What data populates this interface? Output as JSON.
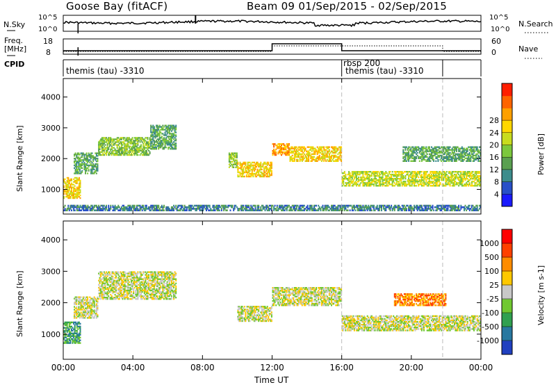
{
  "header": {
    "title": "Goose Bay (fitACF)",
    "beam_info": "Beam 09  01/Sep/2015 - 02/Sep/2015"
  },
  "top_strip": {
    "nsky_label": "N.Sky",
    "nsky_ticks": [
      "10^5",
      "10^0"
    ],
    "nsearch_label": "N.Search",
    "nsearch_ticks": [
      "10^5",
      "10^0"
    ],
    "freq_label_1": "Freq.",
    "freq_label_2": "[MHz]",
    "freq_ticks": [
      "18",
      "8"
    ],
    "nave_label": "Nave",
    "nave_ticks": [
      "60",
      "0"
    ],
    "cpid_label": "CPID",
    "cpid_segments": [
      {
        "text": "themis (tau) -3310"
      },
      {
        "text": "rbsp 200"
      },
      {
        "text": "themis (tau) -3310"
      }
    ]
  },
  "chart_data": [
    {
      "type": "heatmap",
      "quantity": "Power",
      "ylabel": "Slant Range [km]",
      "xlabel": "Time UT",
      "x_ticks": [
        "00:00",
        "04:00",
        "08:00",
        "12:00",
        "16:00",
        "20:00",
        "00:00"
      ],
      "y_ticks": [
        1000,
        2000,
        3000,
        4000
      ],
      "ylim": [
        200,
        4600
      ],
      "xlim_hours": [
        0,
        24
      ],
      "colorbar": {
        "label": "Power [dB]",
        "ticks": [
          "4",
          "8",
          "12",
          "16",
          "20",
          "24",
          "28"
        ],
        "colors": [
          "#1a1aff",
          "#2850c8",
          "#3c8c8c",
          "#5aa050",
          "#7cc83c",
          "#c8dc1e",
          "#ffd700",
          "#ffa000",
          "#ff6400",
          "#ff1e00"
        ]
      },
      "echo_regions": [
        {
          "t0": 0.0,
          "t1": 1.0,
          "r0": 700,
          "r1": 1400,
          "level": 6
        },
        {
          "t0": 0.6,
          "t1": 2.0,
          "r0": 1500,
          "r1": 2200,
          "level": 3
        },
        {
          "t0": 2.0,
          "t1": 5.0,
          "r0": 2100,
          "r1": 2700,
          "level": 4
        },
        {
          "t0": 5.0,
          "t1": 6.5,
          "r0": 2300,
          "r1": 3100,
          "level": 3
        },
        {
          "t0": 9.5,
          "t1": 10.0,
          "r0": 1700,
          "r1": 2200,
          "level": 4
        },
        {
          "t0": 10.0,
          "t1": 12.0,
          "r0": 1400,
          "r1": 1900,
          "level": 6
        },
        {
          "t0": 12.0,
          "t1": 13.0,
          "r0": 2100,
          "r1": 2500,
          "level": 7
        },
        {
          "t0": 13.0,
          "t1": 16.0,
          "r0": 1900,
          "r1": 2400,
          "level": 6
        },
        {
          "t0": 16.0,
          "t1": 24.0,
          "r0": 1100,
          "r1": 1600,
          "level": 5
        },
        {
          "t0": 19.5,
          "t1": 24.0,
          "r0": 1900,
          "r1": 2400,
          "level": 3
        },
        {
          "t0": 0.0,
          "t1": 24.0,
          "r0": 300,
          "r1": 500,
          "level": 2
        }
      ]
    },
    {
      "type": "heatmap",
      "quantity": "Velocity",
      "ylabel": "Slant Range [km]",
      "xlabel": "Time UT",
      "x_ticks": [
        "00:00",
        "04:00",
        "08:00",
        "12:00",
        "16:00",
        "20:00",
        "00:00"
      ],
      "y_ticks": [
        1000,
        2000,
        3000,
        4000
      ],
      "ylim": [
        200,
        4600
      ],
      "xlim_hours": [
        0,
        24
      ],
      "colorbar": {
        "label": "Velocity [m s-1]",
        "ticks": [
          "1000",
          "500",
          "100",
          "25",
          "-25",
          "-100",
          "-500",
          "-1000"
        ],
        "colors": [
          "#2040c0",
          "#2878a0",
          "#30a050",
          "#70c830",
          "#c8c8c8",
          "#ffc800",
          "#ff8c00",
          "#ff4000",
          "#ff0000"
        ]
      },
      "echo_regions": [
        {
          "t0": 0.0,
          "t1": 1.0,
          "r0": 700,
          "r1": 1400,
          "level": 2
        },
        {
          "t0": 0.6,
          "t1": 2.0,
          "r0": 1500,
          "r1": 2200,
          "level": 4
        },
        {
          "t0": 2.0,
          "t1": 6.5,
          "r0": 2100,
          "r1": 3000,
          "level": 4
        },
        {
          "t0": 10.0,
          "t1": 12.0,
          "r0": 1400,
          "r1": 1900,
          "level": 4
        },
        {
          "t0": 12.0,
          "t1": 16.0,
          "r0": 1900,
          "r1": 2500,
          "level": 4
        },
        {
          "t0": 16.0,
          "t1": 24.0,
          "r0": 1100,
          "r1": 1600,
          "level": 4
        },
        {
          "t0": 19.0,
          "t1": 22.0,
          "r0": 1900,
          "r1": 2300,
          "level": 6
        }
      ]
    }
  ]
}
